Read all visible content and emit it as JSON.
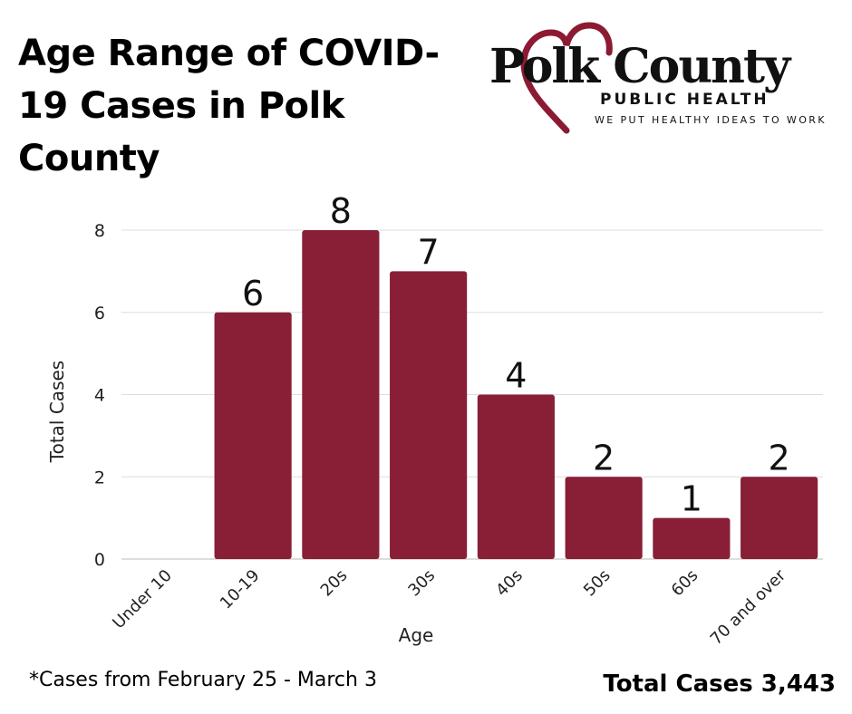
{
  "title": "Age Range of COVID-19 Cases in Polk County",
  "logo": {
    "name": "Polk County",
    "subtitle": "PUBLIC HEALTH",
    "tagline": "WE PUT HEALTHY IDEAS TO WORK",
    "heart_color": "#8b1a32"
  },
  "chart_data": {
    "type": "bar",
    "categories": [
      "Under 10",
      "10-19",
      "20s",
      "30s",
      "40s",
      "50s",
      "60s",
      "70 and over"
    ],
    "values": [
      0,
      6,
      8,
      7,
      4,
      2,
      1,
      2
    ],
    "data_labels": [
      "",
      "6",
      "8",
      "7",
      "4",
      "2",
      "1",
      "2"
    ],
    "xlabel": "Age",
    "ylabel": "Total Cases",
    "ylim": [
      0,
      8
    ],
    "yticks": [
      0,
      2,
      4,
      6,
      8
    ],
    "grid": true,
    "bar_color": "#881f36"
  },
  "footnote": "*Cases from February 25 - March 3",
  "total": "Total Cases 3,443"
}
